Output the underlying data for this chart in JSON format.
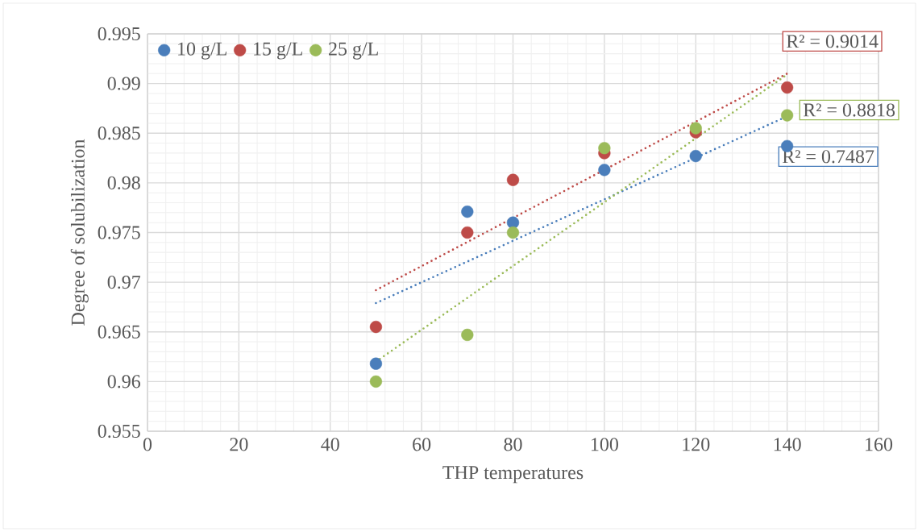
{
  "chart_data": {
    "type": "scatter",
    "xlabel": "THP temperatures",
    "ylabel": "Degree of solubilization",
    "xlim": [
      0,
      160
    ],
    "xticks": [
      0,
      20,
      40,
      60,
      80,
      100,
      120,
      140,
      160
    ],
    "ylim": [
      0.955,
      0.995
    ],
    "yticks": [
      0.955,
      0.96,
      0.965,
      0.97,
      0.975,
      0.98,
      0.985,
      0.99,
      0.995
    ],
    "grid": true,
    "legend": "top left",
    "series": [
      {
        "name": "10 g/L",
        "color": "#4a7ebb",
        "marker": "circle",
        "x": [
          50,
          70,
          80,
          100,
          120,
          140
        ],
        "values": [
          0.9618,
          0.9771,
          0.976,
          0.9813,
          0.9827,
          0.9837
        ]
      },
      {
        "name": "15 g/L",
        "color": "#be4b48",
        "marker": "circle",
        "x": [
          50,
          70,
          80,
          100,
          120,
          140
        ],
        "values": [
          0.9655,
          0.975,
          0.9803,
          0.983,
          0.9851,
          0.9896
        ]
      },
      {
        "name": "25 g/L",
        "color": "#9bbb59",
        "marker": "circle",
        "x": [
          50,
          70,
          80,
          100,
          120,
          140
        ],
        "values": [
          0.96,
          0.9647,
          0.975,
          0.9835,
          0.9855,
          0.9868
        ]
      },
      {
        "type": "line",
        "color": "#4a7ebb",
        "line_style": "dotted",
        "marker": "none",
        "x": [
          50,
          140
        ],
        "values": [
          0.9679,
          0.9867
        ]
      },
      {
        "type": "line",
        "color": "#be4b48",
        "line_style": "dotted",
        "marker": "none",
        "x": [
          50,
          140
        ],
        "values": [
          0.9692,
          0.991
        ]
      },
      {
        "type": "line",
        "color": "#9bbb59",
        "line_style": "dotted",
        "marker": "none",
        "x": [
          50,
          140
        ],
        "values": [
          0.962,
          0.9909
        ]
      }
    ],
    "annotations": [
      "R² = 0.7487",
      "R² = 0.9014",
      "R² = 0.8818"
    ]
  }
}
